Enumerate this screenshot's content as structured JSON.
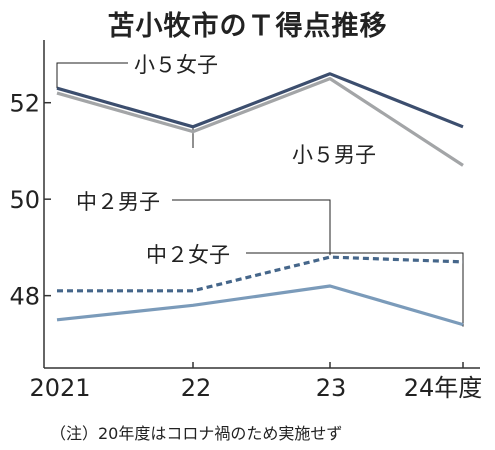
{
  "title": "苫小牧市のＴ得点推移",
  "note": "（注）20年度はコロナ禍のため実施せず",
  "colors": {
    "boys5": "#3c4e6e",
    "girls5": "#a3a5a7",
    "boys2": "#45668a",
    "girls2": "#7b9bba",
    "axis": "#333333",
    "leader": "#222222"
  },
  "chart_data": {
    "type": "line",
    "x": [
      "2021",
      "22",
      "23",
      "24年度"
    ],
    "ylim": [
      46.5,
      53.3
    ],
    "yticks": [
      48,
      50,
      52
    ],
    "grid": false,
    "series": [
      {
        "name": "小５女子",
        "values": [
          52.3,
          51.5,
          52.6,
          51.5
        ],
        "style": "solid"
      },
      {
        "name": "小５男子",
        "values": [
          52.2,
          51.4,
          52.5,
          50.7
        ],
        "style": "solid"
      },
      {
        "name": "中２男子",
        "values": [
          48.1,
          48.1,
          48.8,
          48.7
        ],
        "style": "dashed"
      },
      {
        "name": "中２女子",
        "values": [
          47.5,
          47.8,
          48.2,
          47.4
        ],
        "style": "solid"
      }
    ]
  }
}
